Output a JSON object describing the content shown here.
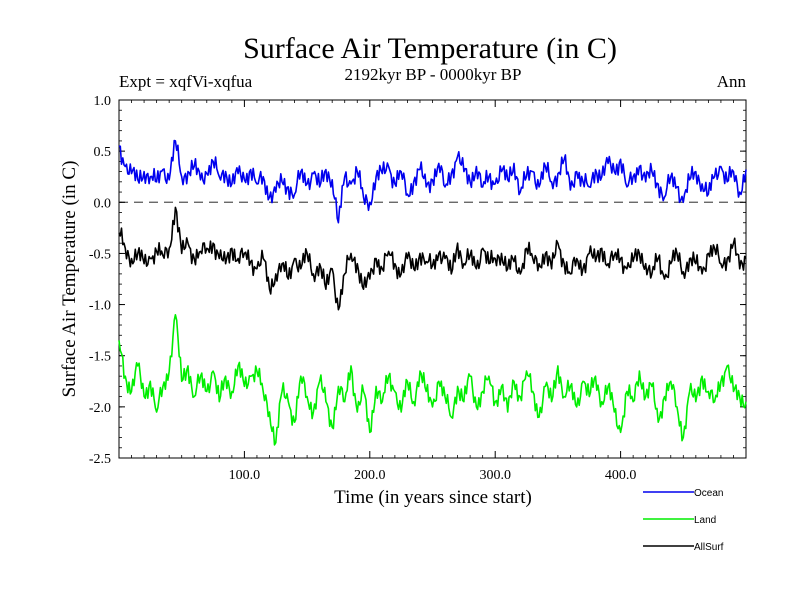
{
  "chart_data": {
    "type": "line",
    "title": "Surface Air Temperature (in C)",
    "subtitle": "2192kyr BP - 0000kyr BP",
    "experiment": "Expt = xqfVi-xqfua",
    "season": "Ann",
    "xlabel": "Time (in years since start)",
    "ylabel": "Surface Air Temperature (in C)",
    "xlim": [
      0,
      500
    ],
    "ylim": [
      -2.5,
      1.0
    ],
    "xticks": [
      {
        "value": 100,
        "label": "100.0"
      },
      {
        "value": 200,
        "label": "200.0"
      },
      {
        "value": 300,
        "label": "300.0"
      },
      {
        "value": 400,
        "label": "400.0"
      }
    ],
    "yticks": [
      {
        "value": 1.0,
        "label": "1.0"
      },
      {
        "value": 0.5,
        "label": "0.5"
      },
      {
        "value": 0.0,
        "label": "0.0"
      },
      {
        "value": -0.5,
        "label": "-0.5"
      },
      {
        "value": -1.0,
        "label": "-1.0"
      },
      {
        "value": -1.5,
        "label": "-1.5"
      },
      {
        "value": -2.0,
        "label": "-2.0"
      },
      {
        "value": -2.5,
        "label": "-2.5"
      }
    ],
    "reference_line": {
      "y": 0.0,
      "style": "dashed"
    },
    "legend_position": "bottom-right",
    "series": [
      {
        "name": "Ocean",
        "color": "#0000ee",
        "x": [
          0,
          5,
          10,
          15,
          20,
          25,
          30,
          35,
          40,
          45,
          50,
          55,
          60,
          65,
          70,
          75,
          80,
          85,
          90,
          95,
          100,
          105,
          110,
          115,
          120,
          125,
          130,
          135,
          140,
          145,
          150,
          155,
          160,
          165,
          170,
          175,
          180,
          185,
          190,
          195,
          200,
          205,
          210,
          215,
          220,
          225,
          230,
          235,
          240,
          245,
          250,
          255,
          260,
          265,
          270,
          275,
          280,
          285,
          290,
          295,
          300,
          305,
          310,
          315,
          320,
          325,
          330,
          335,
          340,
          345,
          350,
          355,
          360,
          365,
          370,
          375,
          380,
          385,
          390,
          395,
          400,
          405,
          410,
          415,
          420,
          425,
          430,
          435,
          440,
          445,
          450,
          455,
          460,
          465,
          470,
          475,
          480,
          485,
          490,
          495,
          500
        ],
        "values": [
          0.55,
          0.35,
          0.28,
          0.22,
          0.3,
          0.25,
          0.2,
          0.32,
          0.22,
          0.6,
          0.25,
          0.3,
          0.35,
          0.22,
          0.28,
          0.4,
          0.25,
          0.3,
          0.18,
          0.28,
          0.22,
          0.32,
          0.18,
          0.25,
          0.05,
          0.1,
          0.2,
          0.15,
          0.08,
          0.3,
          0.18,
          0.28,
          0.15,
          0.32,
          0.22,
          -0.2,
          0.25,
          0.18,
          0.3,
          0.05,
          0.0,
          0.25,
          0.28,
          0.35,
          0.18,
          0.3,
          0.08,
          0.2,
          0.32,
          0.15,
          0.22,
          0.38,
          0.15,
          0.28,
          0.45,
          0.3,
          0.2,
          0.35,
          0.15,
          0.25,
          0.18,
          0.3,
          0.22,
          0.38,
          0.1,
          0.25,
          0.3,
          0.15,
          0.35,
          0.2,
          0.28,
          0.42,
          0.12,
          0.3,
          0.2,
          0.15,
          0.32,
          0.25,
          0.38,
          0.3,
          0.42,
          0.15,
          0.25,
          0.35,
          0.2,
          0.3,
          0.18,
          0.05,
          0.25,
          0.15,
          0.0,
          0.22,
          0.3,
          0.18,
          0.08,
          0.25,
          0.35,
          0.2,
          0.3,
          0.1,
          0.32
        ]
      },
      {
        "name": "Land",
        "color": "#00ee00",
        "x": [
          0,
          5,
          10,
          15,
          20,
          25,
          30,
          35,
          40,
          45,
          50,
          55,
          60,
          65,
          70,
          75,
          80,
          85,
          90,
          95,
          100,
          105,
          110,
          115,
          120,
          125,
          130,
          135,
          140,
          145,
          150,
          155,
          160,
          165,
          170,
          175,
          180,
          185,
          190,
          195,
          200,
          205,
          210,
          215,
          220,
          225,
          230,
          235,
          240,
          245,
          250,
          255,
          260,
          265,
          270,
          275,
          280,
          285,
          290,
          295,
          300,
          305,
          310,
          315,
          320,
          325,
          330,
          335,
          340,
          345,
          350,
          355,
          360,
          365,
          370,
          375,
          380,
          385,
          390,
          395,
          400,
          405,
          410,
          415,
          420,
          425,
          430,
          435,
          440,
          445,
          450,
          455,
          460,
          465,
          470,
          475,
          480,
          485,
          490,
          495,
          500
        ],
        "values": [
          -1.35,
          -1.7,
          -1.85,
          -1.6,
          -1.9,
          -1.75,
          -2.05,
          -1.8,
          -1.65,
          -1.1,
          -1.75,
          -1.6,
          -1.9,
          -1.7,
          -1.85,
          -1.65,
          -1.95,
          -1.7,
          -1.85,
          -1.6,
          -1.8,
          -1.7,
          -1.65,
          -1.85,
          -2.05,
          -2.35,
          -1.85,
          -1.95,
          -2.15,
          -1.7,
          -1.9,
          -2.05,
          -1.75,
          -1.95,
          -2.2,
          -1.8,
          -1.95,
          -1.6,
          -2.05,
          -1.85,
          -2.25,
          -1.8,
          -1.95,
          -1.7,
          -1.85,
          -2.05,
          -1.75,
          -1.95,
          -1.65,
          -1.85,
          -2.0,
          -1.75,
          -1.9,
          -2.1,
          -1.8,
          -1.95,
          -1.7,
          -2.0,
          -1.85,
          -1.7,
          -1.95,
          -1.8,
          -2.05,
          -1.75,
          -1.9,
          -1.65,
          -1.85,
          -2.1,
          -1.8,
          -1.95,
          -1.6,
          -1.9,
          -1.8,
          -2.0,
          -1.75,
          -1.9,
          -1.7,
          -1.95,
          -1.8,
          -2.05,
          -2.25,
          -1.85,
          -1.95,
          -1.65,
          -1.9,
          -1.8,
          -2.15,
          -1.9,
          -1.75,
          -2.0,
          -2.3,
          -1.85,
          -1.95,
          -1.7,
          -1.85,
          -1.95,
          -1.75,
          -1.6,
          -1.85,
          -1.9,
          -1.95
        ]
      },
      {
        "name": "AllSurf",
        "color": "#000000",
        "x": [
          0,
          5,
          10,
          15,
          20,
          25,
          30,
          35,
          40,
          45,
          50,
          55,
          60,
          65,
          70,
          75,
          80,
          85,
          90,
          95,
          100,
          105,
          110,
          115,
          120,
          125,
          130,
          135,
          140,
          145,
          150,
          155,
          160,
          165,
          170,
          175,
          180,
          185,
          190,
          195,
          200,
          205,
          210,
          215,
          220,
          225,
          230,
          235,
          240,
          245,
          250,
          255,
          260,
          265,
          270,
          275,
          280,
          285,
          290,
          295,
          300,
          305,
          310,
          315,
          320,
          325,
          330,
          335,
          340,
          345,
          350,
          355,
          360,
          365,
          370,
          375,
          380,
          385,
          390,
          395,
          400,
          405,
          410,
          415,
          420,
          425,
          430,
          435,
          440,
          445,
          450,
          455,
          460,
          465,
          470,
          475,
          480,
          485,
          490,
          495,
          500
        ],
        "values": [
          -0.3,
          -0.45,
          -0.55,
          -0.5,
          -0.6,
          -0.55,
          -0.48,
          -0.52,
          -0.45,
          -0.05,
          -0.5,
          -0.4,
          -0.55,
          -0.48,
          -0.45,
          -0.4,
          -0.55,
          -0.6,
          -0.45,
          -0.55,
          -0.5,
          -0.58,
          -0.65,
          -0.55,
          -0.85,
          -0.7,
          -0.6,
          -0.75,
          -0.55,
          -0.65,
          -0.5,
          -0.7,
          -0.6,
          -0.85,
          -0.65,
          -1.05,
          -0.7,
          -0.5,
          -0.6,
          -0.85,
          -0.75,
          -0.55,
          -0.65,
          -0.48,
          -0.6,
          -0.7,
          -0.55,
          -0.65,
          -0.5,
          -0.58,
          -0.62,
          -0.5,
          -0.55,
          -0.7,
          -0.4,
          -0.6,
          -0.52,
          -0.65,
          -0.45,
          -0.6,
          -0.55,
          -0.5,
          -0.65,
          -0.58,
          -0.7,
          -0.45,
          -0.55,
          -0.6,
          -0.5,
          -0.65,
          -0.4,
          -0.6,
          -0.7,
          -0.55,
          -0.65,
          -0.5,
          -0.58,
          -0.45,
          -0.6,
          -0.52,
          -0.55,
          -0.65,
          -0.58,
          -0.5,
          -0.6,
          -0.7,
          -0.55,
          -0.75,
          -0.6,
          -0.5,
          -0.68,
          -0.55,
          -0.6,
          -0.7,
          -0.5,
          -0.45,
          -0.6,
          -0.55,
          -0.4,
          -0.65,
          -0.55
        ]
      }
    ]
  }
}
